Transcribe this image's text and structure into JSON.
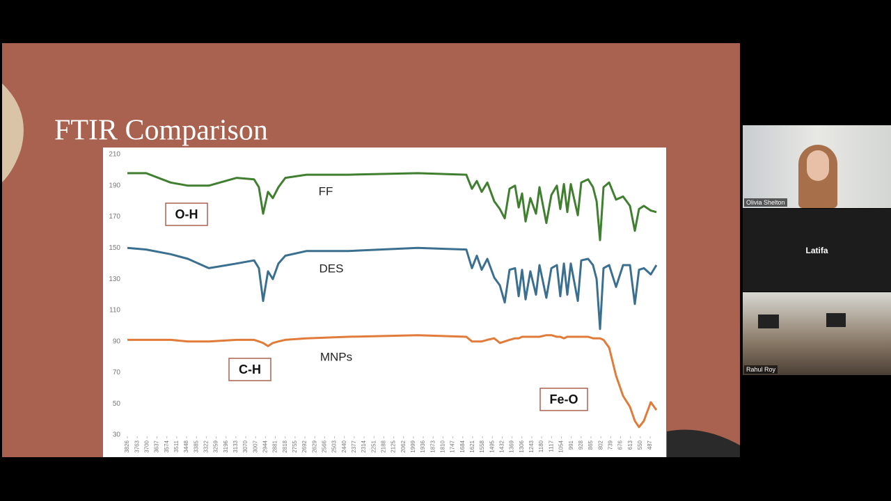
{
  "slide": {
    "title": "FTIR Comparison"
  },
  "chart_data": {
    "type": "line",
    "x": [
      3826,
      3706,
      3550,
      3439,
      3306,
      3128,
      3017,
      2986,
      2959,
      2928,
      2897,
      2861,
      2817,
      2683,
      2417,
      1972,
      1661,
      1625,
      1594,
      1563,
      1527,
      1483,
      1447,
      1416,
      1385,
      1350,
      1327,
      1305,
      1283,
      1252,
      1216,
      1194,
      1150,
      1118,
      1083,
      1061,
      1038,
      1016,
      994,
      949,
      927,
      883,
      852,
      829,
      807,
      785,
      749,
      705,
      660,
      616,
      585,
      558,
      527,
      483,
      447
    ],
    "xlim": [
      3826,
      447
    ],
    "xticks": [
      3826,
      3763,
      3700,
      3637,
      3574,
      3511,
      3448,
      3385,
      3322,
      3259,
      3196,
      3133,
      3070,
      3007,
      2944,
      2881,
      2818,
      2755,
      2692,
      2629,
      2566,
      2503,
      2440,
      2377,
      2314,
      2251,
      2188,
      2125,
      2062,
      1999,
      1936,
      1873,
      1810,
      1747,
      1684,
      1621,
      1558,
      1495,
      1432,
      1369,
      1306,
      1243,
      1180,
      1117,
      1054,
      991,
      928,
      865,
      802,
      739,
      676,
      613,
      550,
      487
    ],
    "ylim": [
      30,
      210
    ],
    "yticks": [
      30,
      50,
      70,
      90,
      110,
      130,
      150,
      170,
      190,
      210
    ],
    "series": [
      {
        "name": "FF",
        "color": "#3f7f2f",
        "values": [
          198,
          198,
          192,
          190,
          190,
          195,
          194,
          189,
          172,
          186,
          182,
          189,
          195,
          197,
          197,
          198,
          197,
          188,
          193,
          186,
          192,
          180,
          175,
          169,
          188,
          190,
          176,
          185,
          167,
          182,
          172,
          189,
          166,
          184,
          190,
          175,
          191,
          173,
          191,
          171,
          192,
          194,
          189,
          180,
          155,
          189,
          192,
          181,
          183,
          177,
          161,
          175,
          177,
          174,
          173
        ]
      },
      {
        "name": "DES",
        "color": "#3b6f8f",
        "values": [
          150,
          149,
          146,
          143,
          137,
          140,
          142,
          137,
          116,
          135,
          130,
          140,
          145,
          148,
          148,
          150,
          149,
          137,
          145,
          136,
          143,
          131,
          126,
          115,
          136,
          137,
          119,
          136,
          117,
          135,
          120,
          139,
          118,
          137,
          139,
          119,
          140,
          120,
          140,
          116,
          142,
          143,
          139,
          130,
          98,
          137,
          139,
          125,
          139,
          139,
          114,
          136,
          137,
          133,
          139
        ]
      },
      {
        "name": "MNPs",
        "color": "#e07b39",
        "values": [
          91,
          91,
          91,
          90,
          90,
          91,
          91,
          90,
          89,
          87,
          89,
          90,
          91,
          92,
          93,
          94,
          93,
          90,
          90,
          90,
          91,
          92,
          89,
          90,
          91,
          92,
          92,
          93,
          93,
          93,
          93,
          93,
          94,
          94,
          93,
          93,
          92,
          93,
          93,
          93,
          93,
          93,
          92,
          92,
          92,
          91,
          86,
          68,
          55,
          48,
          39,
          35,
          39,
          51,
          46
        ]
      }
    ],
    "annotations": [
      "O-H",
      "C-H",
      "Fe-O"
    ]
  },
  "participants": [
    {
      "name": "Olivia Shelton"
    },
    {
      "name": "Latifa"
    },
    {
      "name": "Rahul Roy"
    }
  ]
}
